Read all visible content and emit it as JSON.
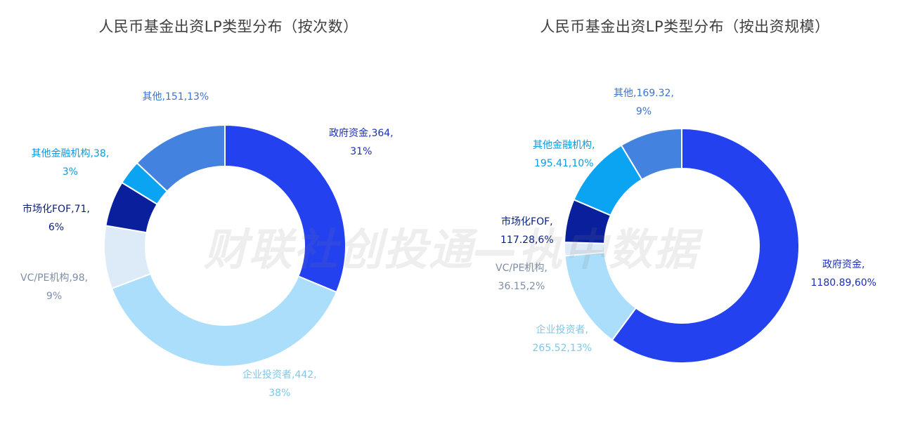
{
  "watermark": "财联社创投通—执中数据",
  "chart_data": [
    {
      "type": "pie",
      "donut": true,
      "title": "人民币基金出资LP类型分布（按次数）",
      "slices": [
        {
          "name": "政府资金",
          "value": 364,
          "percent": "31%",
          "color": "#2441F0",
          "label_line1": "政府资金,364,",
          "label_line2": "31%",
          "label_color": "#1A2FB8"
        },
        {
          "name": "企业投资者",
          "value": 442,
          "percent": "38%",
          "color": "#AADEFB",
          "label_line1": "企业投资者,442,",
          "label_line2": "38%",
          "label_color": "#7FC8EC"
        },
        {
          "name": "VC/PE机构",
          "value": 98,
          "percent": "9%",
          "color": "#DDEAF7",
          "label_line1": "VC/PE机构,98,",
          "label_line2": "9%",
          "label_color": "#7E8DA8"
        },
        {
          "name": "市场化FOF",
          "value": 71,
          "percent": "6%",
          "color": "#0A1F9C",
          "label_line1": "市场化FOF,71,",
          "label_line2": "6%",
          "label_color": "#0A1F7C"
        },
        {
          "name": "其他金融机构",
          "value": 38,
          "percent": "3%",
          "color": "#0AA4F2",
          "label_line1": "其他金融机构,38,",
          "label_line2": "3%",
          "label_color": "#0A9BE0"
        },
        {
          "name": "其他",
          "value": 151,
          "percent": "13%",
          "color": "#4382DE",
          "label_line1": "其他,151,13%",
          "label_line2": "",
          "label_color": "#3A74CC"
        }
      ]
    },
    {
      "type": "pie",
      "donut": true,
      "title": "人民币基金出资LP类型分布（按出资规模）",
      "slices": [
        {
          "name": "政府资金",
          "value": 1180.89,
          "percent": "60%",
          "color": "#2441F0",
          "label_line1": "政府资金,",
          "label_line2": "1180.89,60%",
          "label_color": "#1A2FB8"
        },
        {
          "name": "企业投资者",
          "value": 265.52,
          "percent": "13%",
          "color": "#AADEFB",
          "label_line1": "企业投资者,",
          "label_line2": "265.52,13%",
          "label_color": "#7FC8EC"
        },
        {
          "name": "VC/PE机构",
          "value": 36.15,
          "percent": "2%",
          "color": "#DDEAF7",
          "label_line1": "VC/PE机构,",
          "label_line2": "36.15,2%",
          "label_color": "#7E8DA8"
        },
        {
          "name": "市场化FOF",
          "value": 117.28,
          "percent": "6%",
          "color": "#0A1F9C",
          "label_line1": "市场化FOF,",
          "label_line2": "117.28,6%",
          "label_color": "#0A1F7C"
        },
        {
          "name": "其他金融机构",
          "value": 195.41,
          "percent": "10%",
          "color": "#0AA4F2",
          "label_line1": "其他金融机构,",
          "label_line2": "195.41,10%",
          "label_color": "#0A9BE0"
        },
        {
          "name": "其他",
          "value": 169.32,
          "percent": "9%",
          "color": "#4382DE",
          "label_line1": "其他,169.32,",
          "label_line2": "9%",
          "label_color": "#3A74CC"
        }
      ]
    }
  ]
}
